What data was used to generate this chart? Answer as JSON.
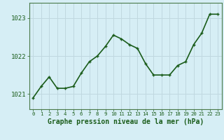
{
  "x": [
    0,
    1,
    2,
    3,
    4,
    5,
    6,
    7,
    8,
    9,
    10,
    11,
    12,
    13,
    14,
    15,
    16,
    17,
    18,
    19,
    20,
    21,
    22,
    23
  ],
  "y": [
    1020.9,
    1021.2,
    1021.45,
    1021.15,
    1021.15,
    1021.2,
    1021.55,
    1021.85,
    1022.0,
    1022.25,
    1022.55,
    1022.45,
    1022.3,
    1022.2,
    1021.8,
    1021.5,
    1021.5,
    1021.5,
    1021.75,
    1021.85,
    1022.3,
    1022.6,
    1023.1,
    1023.1
  ],
  "line_color": "#1a5c1a",
  "marker": "+",
  "marker_size": 3.5,
  "marker_linewidth": 1.0,
  "background_color": "#d6eef5",
  "grid_color": "#c0d8e0",
  "xlabel": "Graphe pression niveau de la mer (hPa)",
  "xlabel_color": "#1a5c1a",
  "yticks": [
    1021,
    1022,
    1023
  ],
  "ylim": [
    1020.6,
    1023.4
  ],
  "xlim": [
    -0.5,
    23.5
  ],
  "tick_color": "#1a5c1a",
  "axis_color": "#4a7a4a",
  "linewidth": 1.2,
  "xtick_fontsize": 5.2,
  "ytick_fontsize": 6.5,
  "xlabel_fontsize": 7.0
}
